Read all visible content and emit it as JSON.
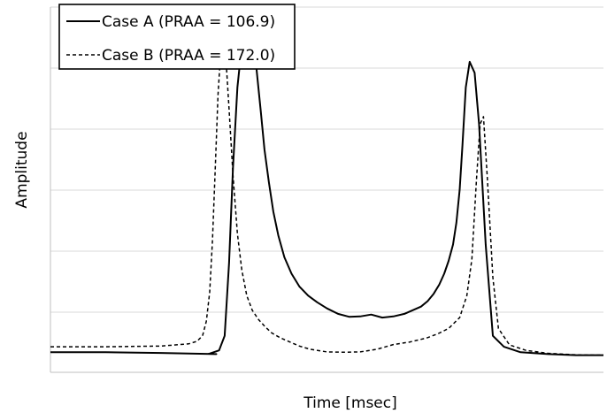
{
  "chart_data": {
    "type": "line",
    "title": "",
    "xlabel": "Time [msec]",
    "ylabel": "Amplitude",
    "xlim": [
      0,
      100
    ],
    "ylim": [
      0,
      100
    ],
    "y_ticks_labeled": false,
    "x_ticks_labeled": false,
    "grid": "horizontal",
    "gridline_count": 6,
    "legend_position": "top-left",
    "series": [
      {
        "name": "Case A (PRAA = 106.9)",
        "style": "solid",
        "color": "#000000",
        "x": [
          0,
          10,
          20,
          30,
          28.5,
          30.5,
          31.5,
          32.3,
          33,
          33.8,
          34.5,
          35.2,
          35.8,
          36.5,
          37.2,
          38,
          38.7,
          39.5,
          40.3,
          41.2,
          42.3,
          43.6,
          45,
          46.6,
          48.2,
          50,
          52,
          54,
          56,
          58,
          60,
          62,
          64,
          65.5,
          67,
          68.2,
          69.3,
          70.3,
          71.2,
          72,
          72.8,
          73.4,
          74,
          74.5,
          75.1,
          75.8,
          76.7,
          77.5,
          78.7,
          80,
          82,
          85,
          90,
          95,
          100
        ],
        "y": [
          5.5,
          5.5,
          5.3,
          5,
          5,
          6,
          10,
          30,
          56,
          78,
          88,
          93,
          94.5,
          92,
          84,
          72,
          61,
          52,
          44,
          37.5,
          31.5,
          27,
          23.5,
          21,
          19.2,
          17.5,
          16,
          15.2,
          15.3,
          15.8,
          15,
          15.3,
          16,
          17,
          18,
          19.5,
          21.5,
          24,
          27,
          30.5,
          35,
          41,
          50,
          62,
          78,
          85,
          82,
          68,
          35,
          10,
          7,
          5.5,
          5,
          4.7,
          4.7
        ]
      },
      {
        "name": "Case B (PRAA = 172.0)",
        "style": "dashed",
        "color": "#000000",
        "x": [
          0,
          10,
          20,
          25,
          26.5,
          27.5,
          28.2,
          28.8,
          29.3,
          29.8,
          30.3,
          30.8,
          31.3,
          31.8,
          32.3,
          33,
          33.8,
          34.6,
          35.5,
          36.5,
          37.6,
          38.8,
          40,
          41.5,
          43,
          45,
          47,
          50,
          53,
          56,
          59,
          62,
          65,
          68,
          70,
          72,
          74,
          75.3,
          76.2,
          77,
          77.7,
          78.3,
          79,
          80,
          81,
          83,
          86,
          90,
          95,
          100
        ],
        "y": [
          7,
          7,
          7.2,
          7.8,
          8.5,
          10,
          14,
          22,
          36,
          56,
          76,
          88,
          89.5,
          84,
          72,
          54,
          38,
          28,
          21,
          17,
          14.5,
          12.5,
          10.8,
          9.5,
          8.5,
          7.2,
          6.3,
          5.6,
          5.5,
          5.6,
          6.3,
          7.6,
          8.3,
          9.4,
          10.5,
          12,
          15,
          21,
          31,
          52,
          68,
          70,
          53,
          26,
          12,
          7.5,
          6,
          5.2,
          4.8,
          4.7
        ]
      }
    ]
  }
}
